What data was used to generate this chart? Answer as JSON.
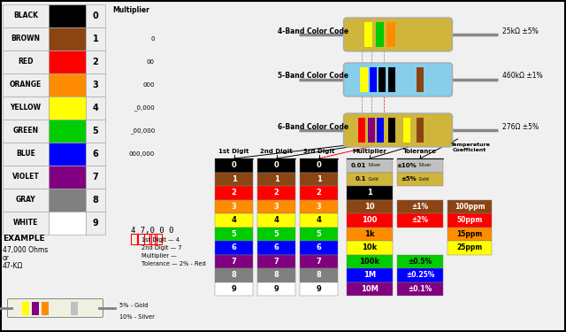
{
  "bg_color": "#f0f0f0",
  "colors": {
    "BLACK": "#000000",
    "BROWN": "#8B4513",
    "RED": "#FF0000",
    "ORANGE": "#FF8C00",
    "YELLOW": "#FFFF00",
    "GREEN": "#00CC00",
    "BLUE": "#0000FF",
    "VIOLET": "#800080",
    "GRAY": "#808080",
    "WHITE": "#FFFFFF"
  },
  "color_names": [
    "BLACK",
    "BROWN",
    "RED",
    "ORANGE",
    "YELLOW",
    "GREEN",
    "BLUE",
    "VIOLET",
    "GRAY",
    "WHITE"
  ],
  "color_numbers": [
    "0",
    "1",
    "2",
    "3",
    "4",
    "5",
    "6",
    "7",
    "8",
    "9"
  ],
  "mult_texts": [
    "",
    "0",
    "00",
    "000",
    "_0,000",
    "_00,000",
    "000,000"
  ],
  "resistor_4band_label": "4-Band Color Code",
  "resistor_4band_value": "25kΩ ±5%",
  "resistor_5band_label": "5-Band Color Code",
  "resistor_5band_value": "460kΩ ±1%",
  "resistor_6band_label": "6-Band Color Code",
  "resistor_6band_value": "276Ω ±5%",
  "digit_columns": [
    "1st Digit",
    "2nd Digit",
    "3rd Digit"
  ],
  "multiplier_col_label": "Multiplier",
  "tolerance_col_label": "Tolerance",
  "temp_coeff_label": "Temperature\nCoefficient",
  "multiplier_values": [
    "0.01",
    "0.1",
    "1",
    "10",
    "100",
    "1k",
    "10k",
    "100k",
    "1M",
    "10M"
  ],
  "multiplier_sub": [
    "Silver",
    "Gold",
    "",
    "",
    "",
    "",
    "",
    "",
    "",
    ""
  ],
  "multiplier_colors": [
    "#C0C0C0",
    "#CFB53B",
    "#000000",
    "#8B4513",
    "#FF0000",
    "#FF8C00",
    "#FFFF00",
    "#00CC00",
    "#0000FF",
    "#800080"
  ],
  "multiplier_text_colors": [
    "#000000",
    "#000000",
    "#FFFFFF",
    "#FFFFFF",
    "#FFFFFF",
    "#000000",
    "#000000",
    "#000000",
    "#FFFFFF",
    "#FFFFFF"
  ],
  "tol_rows": [
    0,
    1,
    3,
    4,
    7,
    8,
    9
  ],
  "tol_vals": [
    "±10%",
    "±5%",
    "±1%",
    "±2%",
    "±0.5%",
    "±0.25%",
    "±0.1%"
  ],
  "tol_sub": [
    "Silver",
    "Gold",
    "",
    "",
    "",
    "",
    ""
  ],
  "tol_colors": [
    "#C0C0C0",
    "#CFB53B",
    "#8B4513",
    "#FF0000",
    "#00CC00",
    "#0000FF",
    "#800080"
  ],
  "tol_text_colors": [
    "#000000",
    "#000000",
    "#FFFFFF",
    "#FFFFFF",
    "#000000",
    "#FFFFFF",
    "#FFFFFF"
  ],
  "tempco_rows": [
    3,
    4,
    5,
    6
  ],
  "tempco_values": [
    "100ppm",
    "50ppm",
    "15ppm",
    "25ppm"
  ],
  "tempco_colors": [
    "#8B4513",
    "#FF0000",
    "#FF8C00",
    "#FFFF00"
  ],
  "tempco_text_colors": [
    "#FFFFFF",
    "#FFFFFF",
    "#000000",
    "#000000"
  ]
}
